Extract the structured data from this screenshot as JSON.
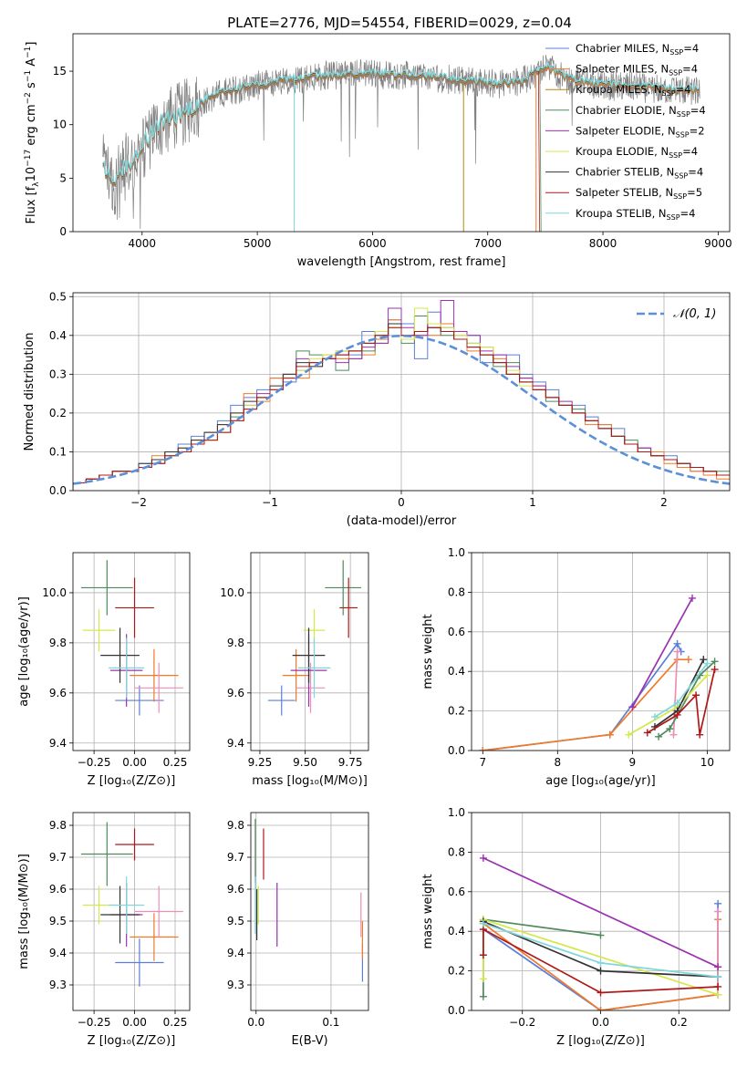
{
  "title": "PLATE=2776, MJD=54554, FIBERID=0029, z=0.04",
  "chart_data": [
    {
      "id": "spectrum",
      "type": "line",
      "xlabel": "wavelength [Angstrom, rest frame]",
      "ylabel": "Flux [f_λ10^-17 erg cm^-2 s^-1 A^-1]",
      "ylabel_parts": {
        "a": "Flux [f",
        "b": "λ",
        "c": "10",
        "d": "−17",
        "e": " erg cm",
        "f": "−2",
        "g": " s",
        "h": "−1",
        "i": " A",
        "j": "−1",
        "k": "]"
      },
      "xlim": [
        3400,
        9100
      ],
      "ylim": [
        0,
        18.5
      ],
      "xticks": [
        4000,
        5000,
        6000,
        7000,
        8000,
        9000
      ],
      "yticks": [
        0,
        5,
        10,
        15
      ],
      "series": [
        {
          "name": "Chabrier MILES, N",
          "sub": "SSP",
          "suffix": "=4",
          "color": "#5b7fd6"
        },
        {
          "name": "Salpeter MILES, N",
          "sub": "SSP",
          "suffix": "=4",
          "color": "#f07a2a"
        },
        {
          "name": "Kroupa MILES, N",
          "sub": "SSP",
          "suffix": "=4",
          "color": "#b8860b"
        },
        {
          "name": "Chabrier ELODIE, N",
          "sub": "SSP",
          "suffix": "=4",
          "color": "#4f8a5e"
        },
        {
          "name": "Salpeter ELODIE, N",
          "sub": "SSP",
          "suffix": "=2",
          "color": "#9b30b0"
        },
        {
          "name": "Kroupa ELODIE, N",
          "sub": "SSP",
          "suffix": "=4",
          "color": "#d4e84a"
        },
        {
          "name": "Chabrier STELIB, N",
          "sub": "SSP",
          "suffix": "=4",
          "color": "#333333"
        },
        {
          "name": "Salpeter STELIB, N",
          "sub": "SSP",
          "suffix": "=5",
          "color": "#b01818"
        },
        {
          "name": "Kroupa STELIB, N",
          "sub": "SSP",
          "suffix": "=4",
          "color": "#7fd7dc"
        }
      ],
      "data_color": "#808080",
      "continuum": {
        "x": [
          3660,
          3750,
          3850,
          3950,
          4050,
          4150,
          4250,
          4350,
          4500,
          4700,
          4900,
          5100,
          5300,
          5500,
          5700,
          5900,
          6100,
          6300,
          6500,
          6700,
          6900,
          7100,
          7300,
          7500,
          7700,
          7900,
          8100,
          8300,
          8500,
          8700,
          8850
        ],
        "y": [
          6.0,
          4.5,
          6.0,
          6.8,
          8.6,
          10.0,
          10.5,
          11.0,
          12.0,
          13.0,
          13.5,
          13.8,
          14.2,
          14.5,
          14.6,
          14.8,
          14.7,
          14.6,
          14.5,
          14.2,
          14.0,
          13.8,
          14.0,
          15.5,
          14.2,
          13.8,
          13.6,
          13.5,
          13.3,
          13.2,
          13.1
        ]
      }
    },
    {
      "id": "residuals",
      "type": "histogram",
      "xlabel": "(data-model)/error",
      "ylabel": "Normed distribution",
      "xlim": [
        -2.5,
        2.5
      ],
      "ylim": [
        0,
        0.51
      ],
      "xticks": [
        -2,
        -1,
        0,
        1,
        2
      ],
      "xtick_labels": [
        "−2",
        "−1",
        "0",
        "1",
        "2"
      ],
      "yticks": [
        0.0,
        0.1,
        0.2,
        0.3,
        0.4,
        0.5
      ],
      "ytick_labels": [
        "0.0",
        "0.1",
        "0.2",
        "0.3",
        "0.4",
        "0.5"
      ],
      "bin_width": 0.1,
      "legend": "𝒩(0, 1)",
      "normal_color": "#5b8fd9"
    },
    {
      "id": "age-vs-Z",
      "type": "scatter",
      "xlabel": "Z [log₁₀(Z/Z⊙)]",
      "ylabel": "age  [log₁₀(age/yr)]",
      "xlim": [
        -0.38,
        0.34
      ],
      "ylim": [
        9.37,
        10.16
      ],
      "xticks": [
        -0.25,
        0.0,
        0.25
      ],
      "xtick_labels": [
        "−0.25",
        "0.00",
        "0.25"
      ],
      "yticks": [
        9.4,
        9.6,
        9.8,
        10.0
      ],
      "ytick_labels": [
        "9.4",
        "9.6",
        "9.8",
        "10.0"
      ]
    },
    {
      "id": "age-vs-mass",
      "type": "scatter",
      "xlabel": "mass [log₁₀(M/M⊙)]",
      "xlim": [
        9.2,
        9.85
      ],
      "ylim": [
        9.37,
        10.16
      ],
      "xticks": [
        9.25,
        9.5,
        9.75
      ],
      "xtick_labels": [
        "9.25",
        "9.50",
        "9.75"
      ],
      "yticks": [
        9.4,
        9.6,
        9.8,
        10.0
      ],
      "ytick_labels": [
        "9.4",
        "9.6",
        "9.8",
        "10.0"
      ]
    },
    {
      "id": "massweight-vs-age",
      "type": "line",
      "xlabel": "age  [log₁₀(age/yr)]",
      "ylabel": "mass weight",
      "xlim": [
        6.85,
        10.3
      ],
      "ylim": [
        0,
        1.0
      ],
      "xticks": [
        7,
        8,
        9,
        10
      ],
      "xtick_labels": [
        "7",
        "8",
        "9",
        "10"
      ],
      "yticks": [
        0.0,
        0.2,
        0.4,
        0.6,
        0.8,
        1.0
      ],
      "ytick_labels": [
        "0.0",
        "0.2",
        "0.4",
        "0.6",
        "0.8",
        "1.0"
      ]
    },
    {
      "id": "mass-vs-Z",
      "type": "scatter",
      "xlabel": "Z [log₁₀(Z/Z⊙)]",
      "ylabel": "mass [log₁₀(M/M⊙)]",
      "xlim": [
        -0.38,
        0.34
      ],
      "ylim": [
        9.22,
        9.84
      ],
      "xticks": [
        -0.25,
        0.0,
        0.25
      ],
      "xtick_labels": [
        "−0.25",
        "0.00",
        "0.25"
      ],
      "yticks": [
        9.3,
        9.4,
        9.5,
        9.6,
        9.7,
        9.8
      ],
      "ytick_labels": [
        "9.3",
        "9.4",
        "9.5",
        "9.6",
        "9.7",
        "9.8"
      ]
    },
    {
      "id": "mass-vs-EBV",
      "type": "scatter",
      "xlabel": "E(B-V)",
      "xlim": [
        -0.007,
        0.15
      ],
      "ylim": [
        9.22,
        9.84
      ],
      "xticks": [
        0.0,
        0.1
      ],
      "xtick_labels": [
        "0.0",
        "0.1"
      ],
      "yticks": [
        9.3,
        9.4,
        9.5,
        9.6,
        9.7,
        9.8
      ],
      "ytick_labels": [
        "9.3",
        "9.4",
        "9.5",
        "9.6",
        "9.7",
        "9.8"
      ]
    },
    {
      "id": "massweight-vs-Z",
      "type": "line",
      "xlabel": "Z [log₁₀(Z/Z⊙)]",
      "ylabel": "mass weight",
      "xlim": [
        -0.33,
        0.33
      ],
      "ylim": [
        0,
        1.0
      ],
      "xticks": [
        -0.2,
        0.0,
        0.2
      ],
      "xtick_labels": [
        "−0.2",
        "0.0",
        "0.2"
      ],
      "yticks": [
        0.0,
        0.2,
        0.4,
        0.6,
        0.8,
        1.0
      ],
      "ytick_labels": [
        "0.0",
        "0.2",
        "0.4",
        "0.6",
        "0.8",
        "1.0"
      ]
    }
  ],
  "fits": [
    {
      "color": "#5b7fd6",
      "Z": [
        0.03,
        0.3
      ],
      "age": [
        9.57,
        0.12
      ],
      "mass": [
        9.37,
        0.15
      ],
      "ebv": [
        0.142,
        9.37,
        0.12
      ],
      "wa": [
        [
          7.0,
          0.0
        ],
        [
          8.7,
          0.08
        ],
        [
          9.6,
          0.54
        ],
        [
          9.65,
          0.5
        ]
      ],
      "wz": [
        [
          -0.3,
          0.41
        ],
        [
          0.0,
          0.0
        ],
        [
          0.3,
          0.08
        ],
        [
          0.3,
          0.54
        ]
      ],
      "hist": [
        0.02,
        0.03,
        0.04,
        0.05,
        0.05,
        0.07,
        0.08,
        0.1,
        0.12,
        0.14,
        0.15,
        0.18,
        0.22,
        0.24,
        0.26,
        0.29,
        0.28,
        0.31,
        0.33,
        0.34,
        0.36,
        0.35,
        0.41,
        0.38,
        0.44,
        0.43,
        0.34,
        0.46,
        0.42,
        0.39,
        0.4,
        0.33,
        0.35,
        0.35,
        0.3,
        0.28,
        0.26,
        0.22,
        0.22,
        0.19,
        0.17,
        0.16,
        0.12,
        0.11,
        0.1,
        0.09,
        0.06,
        0.05,
        0.05,
        0.04
      ]
    },
    {
      "color": "#f07a2a",
      "Z": [
        0.12,
        0.3
      ],
      "age": [
        9.67,
        0.21
      ],
      "mass": [
        9.45,
        0.15
      ],
      "ebv": [
        0.142,
        9.44,
        0.12
      ],
      "wa": [
        [
          7.0,
          0.0
        ],
        [
          8.7,
          0.08
        ],
        [
          9.6,
          0.46
        ],
        [
          9.75,
          0.46
        ]
      ],
      "wz": [
        [
          -0.3,
          0.44
        ],
        [
          0.0,
          0.0
        ],
        [
          0.3,
          0.08
        ],
        [
          0.3,
          0.46
        ]
      ],
      "hist": [
        0.02,
        0.03,
        0.04,
        0.05,
        0.05,
        0.06,
        0.09,
        0.1,
        0.11,
        0.13,
        0.15,
        0.17,
        0.2,
        0.25,
        0.23,
        0.29,
        0.29,
        0.29,
        0.32,
        0.35,
        0.34,
        0.36,
        0.35,
        0.39,
        0.44,
        0.39,
        0.4,
        0.4,
        0.43,
        0.4,
        0.36,
        0.37,
        0.34,
        0.3,
        0.29,
        0.27,
        0.24,
        0.22,
        0.2,
        0.17,
        0.17,
        0.14,
        0.12,
        0.1,
        0.1,
        0.07,
        0.06,
        0.05,
        0.04,
        0.03
      ]
    },
    {
      "color": "#ec8fb6",
      "Z": [
        0.15,
        0.3
      ],
      "age": [
        9.62,
        0.2
      ],
      "mass": [
        9.53,
        0.16
      ],
      "ebv": [
        0.14,
        9.52,
        0.14
      ],
      "wa": [
        [
          9.55,
          0.08
        ],
        [
          9.6,
          0.5
        ]
      ],
      "wz": [
        [
          0.3,
          0.5
        ],
        [
          0.3,
          0.08
        ]
      ]
    },
    {
      "color": "#4f8a5e",
      "Z": [
        -0.17,
        0.32
      ],
      "age": [
        10.02,
        0.22
      ],
      "mass": [
        9.71,
        0.2
      ],
      "ebv": [
        -0.001,
        9.72,
        0.2
      ],
      "wa": [
        [
          9.35,
          0.07
        ],
        [
          9.5,
          0.11
        ],
        [
          9.9,
          0.38
        ],
        [
          10.1,
          0.45
        ]
      ],
      "wz": [
        [
          -0.3,
          0.07
        ],
        [
          -0.3,
          0.46
        ],
        [
          0.0,
          0.38
        ]
      ],
      "hist": [
        0.02,
        0.03,
        0.04,
        0.05,
        0.05,
        0.06,
        0.07,
        0.09,
        0.1,
        0.12,
        0.13,
        0.15,
        0.19,
        0.21,
        0.24,
        0.26,
        0.3,
        0.36,
        0.35,
        0.34,
        0.31,
        0.34,
        0.36,
        0.41,
        0.42,
        0.38,
        0.45,
        0.42,
        0.4,
        0.39,
        0.38,
        0.35,
        0.32,
        0.33,
        0.29,
        0.26,
        0.23,
        0.22,
        0.21,
        0.18,
        0.16,
        0.14,
        0.13,
        0.11,
        0.09,
        0.08,
        0.07,
        0.06,
        0.05,
        0.05
      ]
    },
    {
      "color": "#9b30b0",
      "Z": [
        -0.05,
        0.2
      ],
      "age": [
        9.69,
        0.29
      ],
      "mass": [
        9.52,
        0.2
      ],
      "ebv": [
        0.028,
        9.52,
        0.2
      ],
      "wa": [
        [
          9.0,
          0.22
        ],
        [
          9.8,
          0.77
        ]
      ],
      "wz": [
        [
          -0.3,
          0.77
        ],
        [
          0.3,
          0.22
        ]
      ],
      "hist": [
        0.02,
        0.03,
        0.04,
        0.05,
        0.05,
        0.06,
        0.07,
        0.09,
        0.1,
        0.12,
        0.13,
        0.15,
        0.18,
        0.22,
        0.25,
        0.26,
        0.3,
        0.34,
        0.33,
        0.34,
        0.33,
        0.34,
        0.37,
        0.38,
        0.47,
        0.42,
        0.4,
        0.43,
        0.49,
        0.41,
        0.4,
        0.36,
        0.35,
        0.32,
        0.29,
        0.27,
        0.24,
        0.23,
        0.2,
        0.18,
        0.16,
        0.14,
        0.12,
        0.11,
        0.09,
        0.08,
        0.07,
        0.06,
        0.05,
        0.04
      ]
    },
    {
      "color": "#d4e84a",
      "Z": [
        -0.22,
        0.2
      ],
      "age": [
        9.85,
        0.17
      ],
      "mass": [
        9.55,
        0.12
      ],
      "ebv": [
        0.003,
        9.55,
        0.12
      ],
      "wa": [
        [
          8.95,
          0.08
        ],
        [
          9.6,
          0.22
        ],
        [
          10.0,
          0.38
        ]
      ],
      "wz": [
        [
          -0.3,
          0.16
        ],
        [
          -0.3,
          0.46
        ],
        [
          0.3,
          0.08
        ]
      ],
      "hist": [
        0.02,
        0.03,
        0.04,
        0.05,
        0.05,
        0.06,
        0.07,
        0.09,
        0.1,
        0.12,
        0.13,
        0.15,
        0.18,
        0.22,
        0.24,
        0.26,
        0.3,
        0.31,
        0.34,
        0.35,
        0.36,
        0.36,
        0.38,
        0.41,
        0.42,
        0.39,
        0.47,
        0.43,
        0.42,
        0.4,
        0.38,
        0.37,
        0.33,
        0.31,
        0.27,
        0.26,
        0.24,
        0.22,
        0.2,
        0.18,
        0.16,
        0.14,
        0.12,
        0.1,
        0.09,
        0.08,
        0.07,
        0.06,
        0.05,
        0.04
      ]
    },
    {
      "color": "#333333",
      "Z": [
        -0.09,
        0.24
      ],
      "age": [
        9.75,
        0.22
      ],
      "mass": [
        9.52,
        0.18
      ],
      "ebv": [
        0.001,
        9.52,
        0.16
      ],
      "wa": [
        [
          9.3,
          0.12
        ],
        [
          9.6,
          0.2
        ],
        [
          9.95,
          0.46
        ]
      ],
      "wz": [
        [
          -0.3,
          0.45
        ],
        [
          0.0,
          0.2
        ],
        [
          0.3,
          0.17
        ]
      ],
      "hist": [
        0.02,
        0.03,
        0.04,
        0.05,
        0.05,
        0.07,
        0.08,
        0.1,
        0.11,
        0.13,
        0.15,
        0.17,
        0.2,
        0.23,
        0.24,
        0.27,
        0.3,
        0.33,
        0.32,
        0.34,
        0.35,
        0.36,
        0.38,
        0.4,
        0.43,
        0.4,
        0.41,
        0.42,
        0.41,
        0.39,
        0.37,
        0.35,
        0.33,
        0.3,
        0.28,
        0.26,
        0.24,
        0.22,
        0.2,
        0.18,
        0.16,
        0.14,
        0.12,
        0.1,
        0.09,
        0.08,
        0.07,
        0.06,
        0.05,
        0.04
      ]
    },
    {
      "color": "#b01818",
      "Z": [
        0.0,
        0.24
      ],
      "age": [
        9.94,
        0.24
      ],
      "mass": [
        9.74,
        0.1
      ],
      "ebv": [
        0.01,
        9.71,
        0.16
      ],
      "wa": [
        [
          9.2,
          0.09
        ],
        [
          9.6,
          0.18
        ],
        [
          9.85,
          0.28
        ],
        [
          9.9,
          0.08
        ],
        [
          10.1,
          0.41
        ]
      ],
      "wz": [
        [
          -0.3,
          0.28
        ],
        [
          -0.3,
          0.41
        ],
        [
          0.0,
          0.09
        ],
        [
          0.3,
          0.12
        ]
      ],
      "hist": [
        0.02,
        0.03,
        0.04,
        0.05,
        0.05,
        0.06,
        0.07,
        0.09,
        0.1,
        0.12,
        0.13,
        0.15,
        0.18,
        0.21,
        0.24,
        0.26,
        0.29,
        0.32,
        0.33,
        0.34,
        0.35,
        0.36,
        0.38,
        0.4,
        0.42,
        0.4,
        0.41,
        0.42,
        0.41,
        0.39,
        0.37,
        0.35,
        0.33,
        0.3,
        0.28,
        0.26,
        0.24,
        0.22,
        0.2,
        0.18,
        0.16,
        0.14,
        0.12,
        0.1,
        0.09,
        0.08,
        0.07,
        0.06,
        0.05,
        0.04
      ]
    },
    {
      "color": "#7fd7dc",
      "Z": [
        -0.05,
        0.22
      ],
      "age": [
        9.7,
        0.24
      ],
      "mass": [
        9.55,
        0.18
      ],
      "ebv": [
        -0.001,
        9.55,
        0.18
      ],
      "wa": [
        [
          9.3,
          0.17
        ],
        [
          9.6,
          0.24
        ],
        [
          10.0,
          0.44
        ]
      ],
      "wz": [
        [
          -0.3,
          0.44
        ],
        [
          0.0,
          0.24
        ],
        [
          0.3,
          0.17
        ]
      ]
    }
  ]
}
